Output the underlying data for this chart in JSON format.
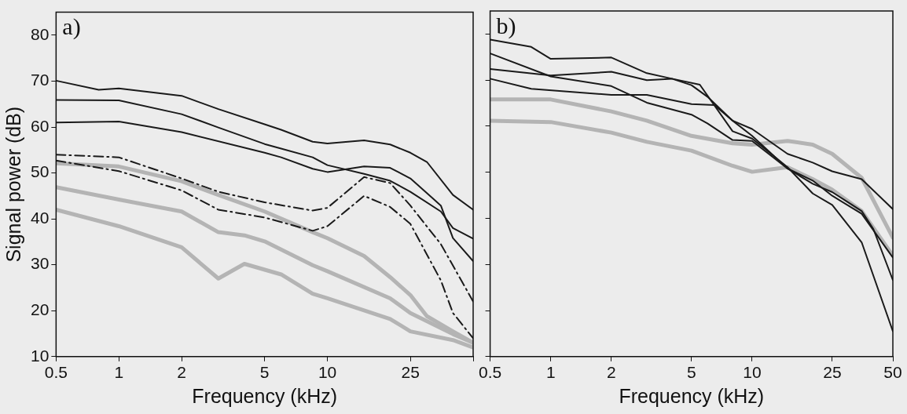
{
  "chart_data": [
    {
      "type": "line",
      "xlabel": "Frequency (kHz)",
      "ylabel": "Signal power (dB)",
      "annotations": [
        "a)"
      ],
      "log": "x",
      "grid": false,
      "legend": false,
      "marker": "none",
      "xlim": [
        0.5,
        50
      ],
      "xticks": [
        0.5,
        1,
        2,
        5,
        10,
        25,
        {
          "value": 50,
          "label": null
        }
      ],
      "ylim": [
        10,
        85
      ],
      "yticks": [
        10,
        20,
        30,
        40,
        50,
        60,
        70,
        80
      ],
      "series": [
        {
          "color": "#1a1a1a",
          "line_style": "solid",
          "x": [
            0.5,
            0.8,
            1,
            2,
            3,
            5,
            6,
            8.5,
            10,
            15,
            20,
            25,
            30,
            40,
            50
          ],
          "values": [
            70.1,
            68.1,
            68.4,
            66.8,
            63.9,
            60.6,
            59.4,
            56.8,
            56.4,
            57.1,
            56.2,
            54.4,
            52.4,
            45.2,
            42
          ]
        },
        {
          "color": "#1a1a1a",
          "line_style": "solid",
          "x": [
            0.5,
            1,
            2,
            3,
            5,
            6,
            8.5,
            10,
            15,
            20,
            25,
            35,
            40,
            50
          ],
          "values": [
            65.9,
            65.8,
            62.8,
            59.9,
            56.3,
            55.3,
            53.4,
            51.7,
            49.8,
            48.3,
            45.9,
            41.6,
            38,
            35.7
          ]
        },
        {
          "color": "#1a1a1a",
          "line_style": "solid",
          "x": [
            0.5,
            1,
            2,
            5,
            6,
            8.5,
            10,
            15,
            20,
            25,
            35,
            40,
            50
          ],
          "values": [
            61,
            61.2,
            58.9,
            54.4,
            53.4,
            50.9,
            50.2,
            51.4,
            51.1,
            48.8,
            42.9,
            35.8,
            30.8
          ]
        },
        {
          "color": "#1a1a1a",
          "line_style": "dashed",
          "x": [
            0.5,
            1,
            2,
            3,
            5,
            8.5,
            10,
            15,
            20,
            25,
            35,
            50
          ],
          "values": [
            54,
            53.4,
            48.8,
            45.9,
            43.6,
            41.8,
            42.4,
            49.1,
            47.8,
            42.9,
            34.5,
            22
          ]
        },
        {
          "color": "#1a1a1a",
          "line_style": "dashed",
          "x": [
            0.5,
            1,
            2,
            3,
            5,
            8.5,
            10,
            15,
            20,
            25,
            35,
            40,
            50
          ],
          "values": [
            52.7,
            50.4,
            46.2,
            42,
            40.3,
            37.4,
            38.4,
            45,
            42.6,
            38.9,
            26.6,
            19.5,
            14
          ]
        },
        {
          "color": "#b4b4b4",
          "line_style": "solid",
          "x": [
            0.5,
            1,
            2,
            3,
            5,
            8.5,
            10,
            15,
            20,
            25,
            30,
            40,
            50
          ],
          "values": [
            52.1,
            51.4,
            48.2,
            45.2,
            41.6,
            37.1,
            35.8,
            31.9,
            27.3,
            23.4,
            18.8,
            15.5,
            13
          ]
        },
        {
          "color": "#b4b4b4",
          "line_style": "solid",
          "x": [
            0.5,
            1,
            2,
            3,
            4,
            5,
            8.5,
            10,
            20,
            25,
            40,
            50
          ],
          "values": [
            46.9,
            44.2,
            41.6,
            37.1,
            36.4,
            35.1,
            29.9,
            28.6,
            22.7,
            19.5,
            14.9,
            13
          ]
        },
        {
          "color": "#b4b4b4",
          "line_style": "solid",
          "x": [
            0.5,
            1,
            2,
            3,
            4,
            6,
            8.5,
            10,
            20,
            25,
            40,
            50
          ],
          "values": [
            42,
            38.4,
            33.8,
            27,
            30.2,
            27.9,
            23.7,
            22.7,
            18.2,
            15.5,
            13.6,
            12
          ]
        }
      ]
    },
    {
      "type": "line",
      "xlabel": "Frequency (kHz)",
      "annotations": [
        "b)"
      ],
      "log": "x",
      "grid": false,
      "legend": false,
      "marker": "none",
      "tick_labels": "x",
      "xlim": [
        0.5,
        50
      ],
      "xticks": [
        0.5,
        1,
        2,
        5,
        10,
        25,
        50
      ],
      "ylim": [
        10,
        85
      ],
      "yticks": [
        10,
        20,
        30,
        40,
        50,
        60,
        70,
        80
      ],
      "series": [
        {
          "color": "#1a1a1a",
          "line_style": "solid",
          "x": [
            0.5,
            0.8,
            1,
            2,
            3,
            4,
            5.5,
            8,
            10,
            15,
            20,
            25,
            35,
            50
          ],
          "values": [
            78.8,
            77.2,
            74.6,
            74.9,
            71.5,
            70.3,
            69,
            58.9,
            57.3,
            51.1,
            45.4,
            42.9,
            34.8,
            15.5
          ]
        },
        {
          "color": "#1a1a1a",
          "line_style": "solid",
          "x": [
            0.5,
            1,
            2,
            3,
            5,
            6,
            8,
            10,
            15,
            20,
            25,
            35,
            40,
            50
          ],
          "values": [
            75.8,
            70.8,
            68.7,
            65.1,
            62.5,
            60.6,
            57,
            56.8,
            50.8,
            47.5,
            45.7,
            41.6,
            37.7,
            26.6
          ]
        },
        {
          "color": "#1a1a1a",
          "line_style": "solid",
          "x": [
            0.5,
            1,
            2,
            3,
            4,
            5,
            6,
            8,
            10,
            15,
            20,
            25,
            35,
            50
          ],
          "values": [
            72.4,
            71,
            71.8,
            70,
            70.3,
            68.9,
            66.4,
            61.2,
            57.9,
            50.8,
            48.2,
            44.9,
            41,
            31.5
          ]
        },
        {
          "color": "#1a1a1a",
          "line_style": "solid",
          "x": [
            0.5,
            0.8,
            2,
            3,
            5,
            6.5,
            8,
            10,
            15,
            20,
            25,
            35,
            50
          ],
          "values": [
            70.3,
            68.1,
            66.8,
            66.8,
            64.8,
            64.6,
            61.2,
            59.4,
            54,
            52.1,
            50.2,
            48.5,
            42
          ]
        },
        {
          "color": "#b4b4b4",
          "line_style": "solid",
          "x": [
            0.5,
            1,
            2,
            3,
            5,
            8,
            10,
            15,
            20,
            25,
            35,
            50
          ],
          "values": [
            65.8,
            65.8,
            63.2,
            61.2,
            57.9,
            56.3,
            56,
            56.8,
            56,
            54,
            48.8,
            35.8
          ]
        },
        {
          "color": "#b4b4b4",
          "line_style": "solid",
          "x": [
            0.5,
            1,
            2,
            3,
            5,
            8,
            10,
            15,
            20,
            25,
            35,
            50
          ],
          "values": [
            61.2,
            60.9,
            58.6,
            56.6,
            54.7,
            51.4,
            50.1,
            51.1,
            48.5,
            46.2,
            41.6,
            31.9
          ]
        }
      ]
    }
  ]
}
